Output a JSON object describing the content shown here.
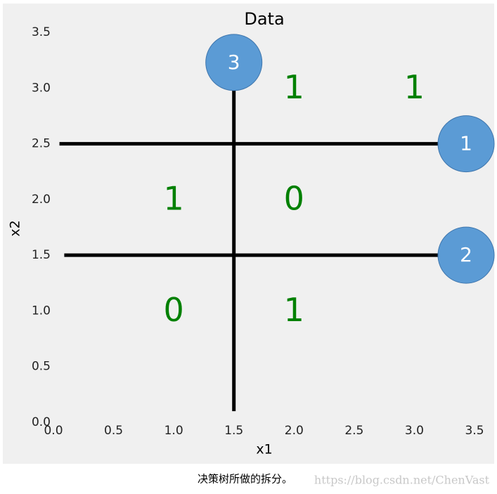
{
  "chart_data": {
    "type": "splits",
    "title": "Data",
    "x_label": "x1",
    "y_label": "x2",
    "xlim": [
      0,
      3.5
    ],
    "ylim": [
      0,
      3.5
    ],
    "xticks": [
      {
        "value": 0,
        "label": "0.0"
      },
      0.5,
      {
        "value": 1,
        "label": "1.0"
      },
      1.5,
      {
        "value": 2,
        "label": "2.0"
      },
      2.5,
      {
        "value": 3,
        "label": "3.0"
      },
      3.5
    ],
    "yticks": [
      {
        "value": 0,
        "label": "0.0"
      },
      0.5,
      {
        "value": 1,
        "label": "1.0"
      },
      1.5,
      {
        "value": 2,
        "label": "2.0"
      },
      2.5,
      {
        "value": 3,
        "label": "3.0"
      },
      3.5
    ],
    "line_color": "#000000",
    "node_color": "#5b9bd5",
    "label_color": "#008000",
    "splits": [
      {
        "node": "1",
        "x": [
          0.05,
          3.43
        ],
        "y": [
          2.5,
          2.5
        ]
      },
      {
        "node": "2",
        "x": [
          0.09,
          3.43
        ],
        "y": [
          1.5,
          1.5
        ]
      },
      {
        "node": "3",
        "x": [
          1.5,
          1.5
        ],
        "y": [
          0.1,
          3.23
        ]
      }
    ],
    "labels": [
      {
        "text": "1",
        "x": 2.0,
        "y": 3.0
      },
      {
        "text": "1",
        "x": 3.0,
        "y": 3.0
      },
      {
        "text": "1",
        "x": 1.0,
        "y": 2.0
      },
      {
        "text": "0",
        "x": 2.0,
        "y": 2.0
      },
      {
        "text": "0",
        "x": 1.0,
        "y": 1.0
      },
      {
        "text": "1",
        "x": 2.0,
        "y": 1.0
      }
    ]
  },
  "caption": "决策树所做的拆分。",
  "watermark": "https://blog.csdn.net/ChenVast"
}
